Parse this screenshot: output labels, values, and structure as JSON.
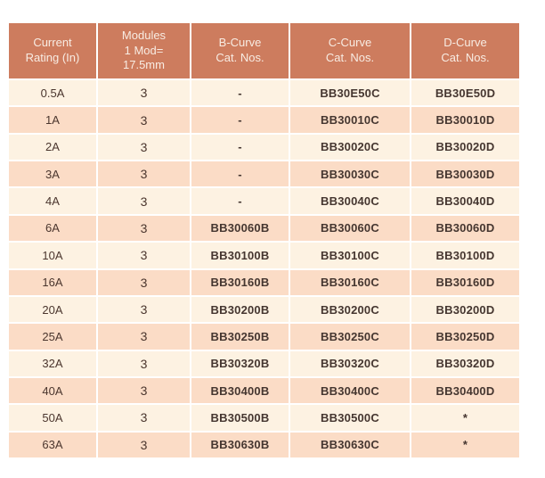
{
  "colors": {
    "page_background": "#ffffff",
    "header_bg": "#cd7c5e",
    "header_text": "#f8ece3",
    "row_light_bg": "#fdf2e2",
    "row_dark_bg": "#fbdcc6",
    "cell_text": "#4b362e"
  },
  "table": {
    "headers": [
      "Current\nRating (In)",
      "Modules\n1 Mod=\n17.5mm",
      "B-Curve\nCat. Nos.",
      "C-Curve\nCat. Nos.",
      "D-Curve\nCat. Nos."
    ],
    "rows": [
      [
        "0.5A",
        "3",
        "-",
        "BB30E50C",
        "BB30E50D"
      ],
      [
        "1A",
        "3",
        "-",
        "BB30010C",
        "BB30010D"
      ],
      [
        "2A",
        "3",
        "-",
        "BB30020C",
        "BB30020D"
      ],
      [
        "3A",
        "3",
        "-",
        "BB30030C",
        "BB30030D"
      ],
      [
        "4A",
        "3",
        "-",
        "BB30040C",
        "BB30040D"
      ],
      [
        "6A",
        "3",
        "BB30060B",
        "BB30060C",
        "BB30060D"
      ],
      [
        "10A",
        "3",
        "BB30100B",
        "BB30100C",
        "BB30100D"
      ],
      [
        "16A",
        "3",
        "BB30160B",
        "BB30160C",
        "BB30160D"
      ],
      [
        "20A",
        "3",
        "BB30200B",
        "BB30200C",
        "BB30200D"
      ],
      [
        "25A",
        "3",
        "BB30250B",
        "BB30250C",
        "BB30250D"
      ],
      [
        "32A",
        "3",
        "BB30320B",
        "BB30320C",
        "BB30320D"
      ],
      [
        "40A",
        "3",
        "BB30400B",
        "BB30400C",
        "BB30400D"
      ],
      [
        "50A",
        "3",
        "BB30500B",
        "BB30500C",
        "*"
      ],
      [
        "63A",
        "3",
        "BB30630B",
        "BB30630C",
        "*"
      ]
    ]
  }
}
